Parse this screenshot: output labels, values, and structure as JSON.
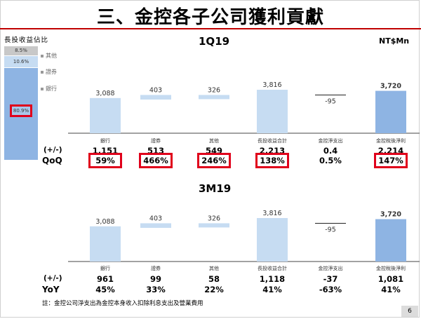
{
  "title": "三、金控各子公司獲利貢獻",
  "unit": "NT$Mn",
  "stack": {
    "title": "長投收益佔比",
    "segments": [
      {
        "name": "其他",
        "pct": 8.5,
        "label": "8.5%",
        "color": "#c8c8c8"
      },
      {
        "name": "證券",
        "pct": 10.6,
        "label": "10.6%",
        "color": "#c6dcf2"
      },
      {
        "name": "銀行",
        "pct": 80.9,
        "label": "80.9%",
        "color": "#8eb4e3"
      }
    ]
  },
  "note": "註：金控公司淨支出為金控本身收入扣除利息支出及營業費用",
  "page_number": "6",
  "chart_data": [
    {
      "type": "bar",
      "title": "1Q19",
      "categories": [
        "銀行",
        "證券",
        "其他",
        "長投收益合計",
        "金控淨支出",
        "金控稅後淨利"
      ],
      "values": [
        3088,
        403,
        326,
        3816,
        -95,
        3720
      ],
      "value_labels": [
        "3,088",
        "403",
        "326",
        "3,816",
        "-95",
        "3,720"
      ],
      "change_row_label": "(+/-)",
      "changes": [
        "1,151",
        "513",
        "549",
        "2,213",
        "0.4",
        "2,214"
      ],
      "pct_row_label": "QoQ",
      "pcts": [
        "59%",
        "466%",
        "246%",
        "138%",
        "0.5%",
        "147%"
      ],
      "highlighted": [
        true,
        true,
        true,
        true,
        false,
        true
      ]
    },
    {
      "type": "bar",
      "title": "3M19",
      "categories": [
        "銀行",
        "證券",
        "其他",
        "長投收益合計",
        "金控淨支出",
        "金控稅後淨利"
      ],
      "values": [
        3088,
        403,
        326,
        3816,
        -95,
        3720
      ],
      "value_labels": [
        "3,088",
        "403",
        "326",
        "3,816",
        "-95",
        "3,720"
      ],
      "change_row_label": "(+/-)",
      "changes": [
        "961",
        "99",
        "58",
        "1,118",
        "-37",
        "1,081"
      ],
      "pct_row_label": "YoY",
      "pcts": [
        "45%",
        "33%",
        "22%",
        "41%",
        "-63%",
        "41%"
      ],
      "highlighted": [
        false,
        false,
        false,
        false,
        false,
        false
      ]
    }
  ]
}
